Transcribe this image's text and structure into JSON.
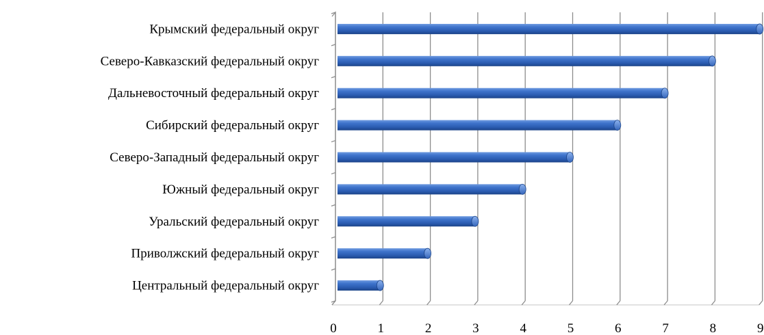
{
  "chart_data": {
    "type": "bar",
    "orientation": "horizontal",
    "categories": [
      "Крымский федеральный округ",
      "Северо-Кавказский федеральный округ",
      "Дальневосточный федеральный округ",
      "Сибирский федеральный округ",
      "Северо-Западный федеральный округ",
      "Южный федеральный округ",
      "Уральский федеральный округ",
      "Приволжский федеральный округ",
      "Центральный федеральный округ"
    ],
    "values": [
      9,
      8,
      7,
      6,
      5,
      4,
      3,
      2,
      1
    ],
    "xlim": [
      0,
      9
    ],
    "xticks": [
      "0",
      "1",
      "2",
      "3",
      "4",
      "5",
      "6",
      "7",
      "8",
      "9"
    ],
    "grid": true,
    "legend": "none",
    "bar_color": "#2f62b8",
    "grid_color": "#8c8c8c"
  }
}
